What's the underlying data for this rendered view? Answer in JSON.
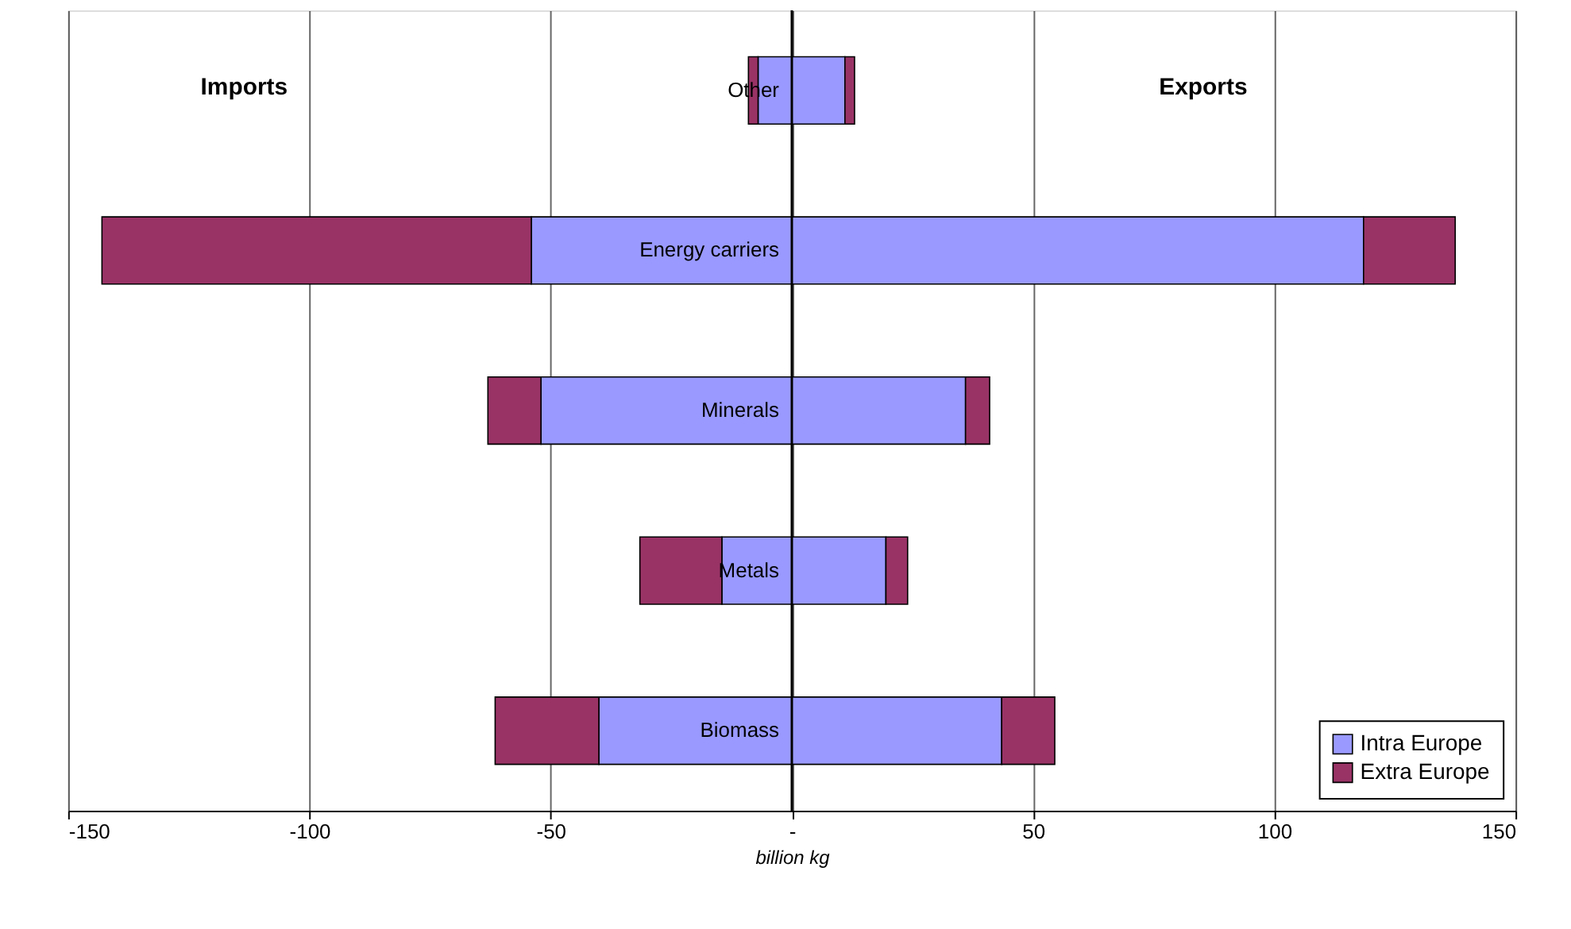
{
  "chart_data": {
    "type": "bar",
    "orientation": "horizontal",
    "stacked": true,
    "categories": [
      "Other",
      "Energy carriers",
      "Minerals",
      "Metals",
      "Biomass"
    ],
    "series": [
      {
        "name": "Intra Europe",
        "color": "#9999ff",
        "values": [
          11,
          118.5,
          36,
          19.5,
          43.5
        ]
      },
      {
        "name": "Extra Europe",
        "color": "#993366",
        "values": [
          2,
          19,
          5,
          4.5,
          11
        ]
      },
      {
        "color": "#9999ff",
        "values": [
          -7,
          -54,
          -52,
          -14.5,
          -40
        ]
      },
      {
        "color": "#993366",
        "values": [
          -2,
          -89,
          -11,
          -17,
          -21.5
        ]
      }
    ],
    "xlabel": "billion kg",
    "annotations": [
      "Imports",
      "Exports"
    ],
    "xlim": [
      -150,
      150
    ],
    "xticks": [
      -150,
      -100,
      -50,
      {
        "value": 0,
        "label": "-"
      },
      50,
      100,
      150
    ],
    "grid": "x",
    "legend": "bottom right",
    "tick_labels": "x"
  }
}
